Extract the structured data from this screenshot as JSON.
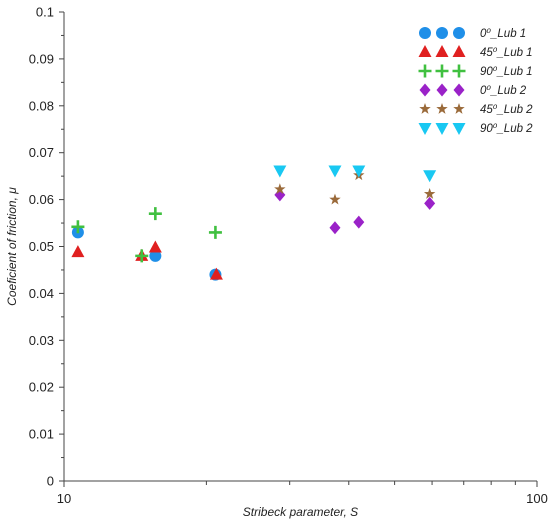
{
  "chart_data": {
    "type": "scatter",
    "title": "",
    "xlabel": "Stribeck parameter, S",
    "ylabel": "Coeficient of friction, μ",
    "xscale": "log",
    "xlim": [
      10,
      100
    ],
    "ylim": [
      0,
      0.1
    ],
    "x_tick_labels": [
      "10",
      "100"
    ],
    "y_ticks": [
      0,
      0.01,
      0.02,
      0.03,
      0.04,
      0.05,
      0.06,
      0.07,
      0.08,
      0.09,
      0.1
    ],
    "y_tick_labels": [
      "0",
      "0.01",
      "0.02",
      "0.03",
      "0.04",
      "0.05",
      "0.06",
      "0.07",
      "0.08",
      "0.09",
      "0.1"
    ],
    "grid": false,
    "legend_position": "top-right",
    "series": [
      {
        "name": "0⁰_Lub 1",
        "marker": "circle",
        "color": "#1f8fe8",
        "points": [
          [
            10.7,
            0.053
          ],
          [
            15.6,
            0.048
          ],
          [
            20.9,
            0.044
          ]
        ]
      },
      {
        "name": "45⁰_Lub 1",
        "marker": "triangle-up",
        "color": "#e02020",
        "points": [
          [
            10.7,
            0.0488
          ],
          [
            14.6,
            0.048
          ],
          [
            15.6,
            0.0498
          ],
          [
            21.0,
            0.044
          ]
        ]
      },
      {
        "name": "90⁰_Lub 1",
        "marker": "plus",
        "color": "#40c040",
        "points": [
          [
            10.7,
            0.0542
          ],
          [
            14.6,
            0.048
          ],
          [
            15.6,
            0.057
          ],
          [
            20.9,
            0.053
          ]
        ]
      },
      {
        "name": "0⁰_Lub 2",
        "marker": "diamond",
        "color": "#9a22c8",
        "points": [
          [
            28.6,
            0.061
          ],
          [
            37.4,
            0.054
          ],
          [
            42.0,
            0.0552
          ],
          [
            59.3,
            0.0592
          ]
        ]
      },
      {
        "name": "45⁰_Lub 2",
        "marker": "star",
        "color": "#9a6a3a",
        "points": [
          [
            28.6,
            0.0622
          ],
          [
            37.4,
            0.06
          ],
          [
            42.0,
            0.0652
          ],
          [
            59.3,
            0.0612
          ]
        ]
      },
      {
        "name": "90⁰_Lub 2",
        "marker": "triangle-down",
        "color": "#19c8f2",
        "points": [
          [
            28.6,
            0.0662
          ],
          [
            37.4,
            0.0662
          ],
          [
            42.0,
            0.0662
          ],
          [
            59.3,
            0.0652
          ]
        ]
      }
    ]
  }
}
